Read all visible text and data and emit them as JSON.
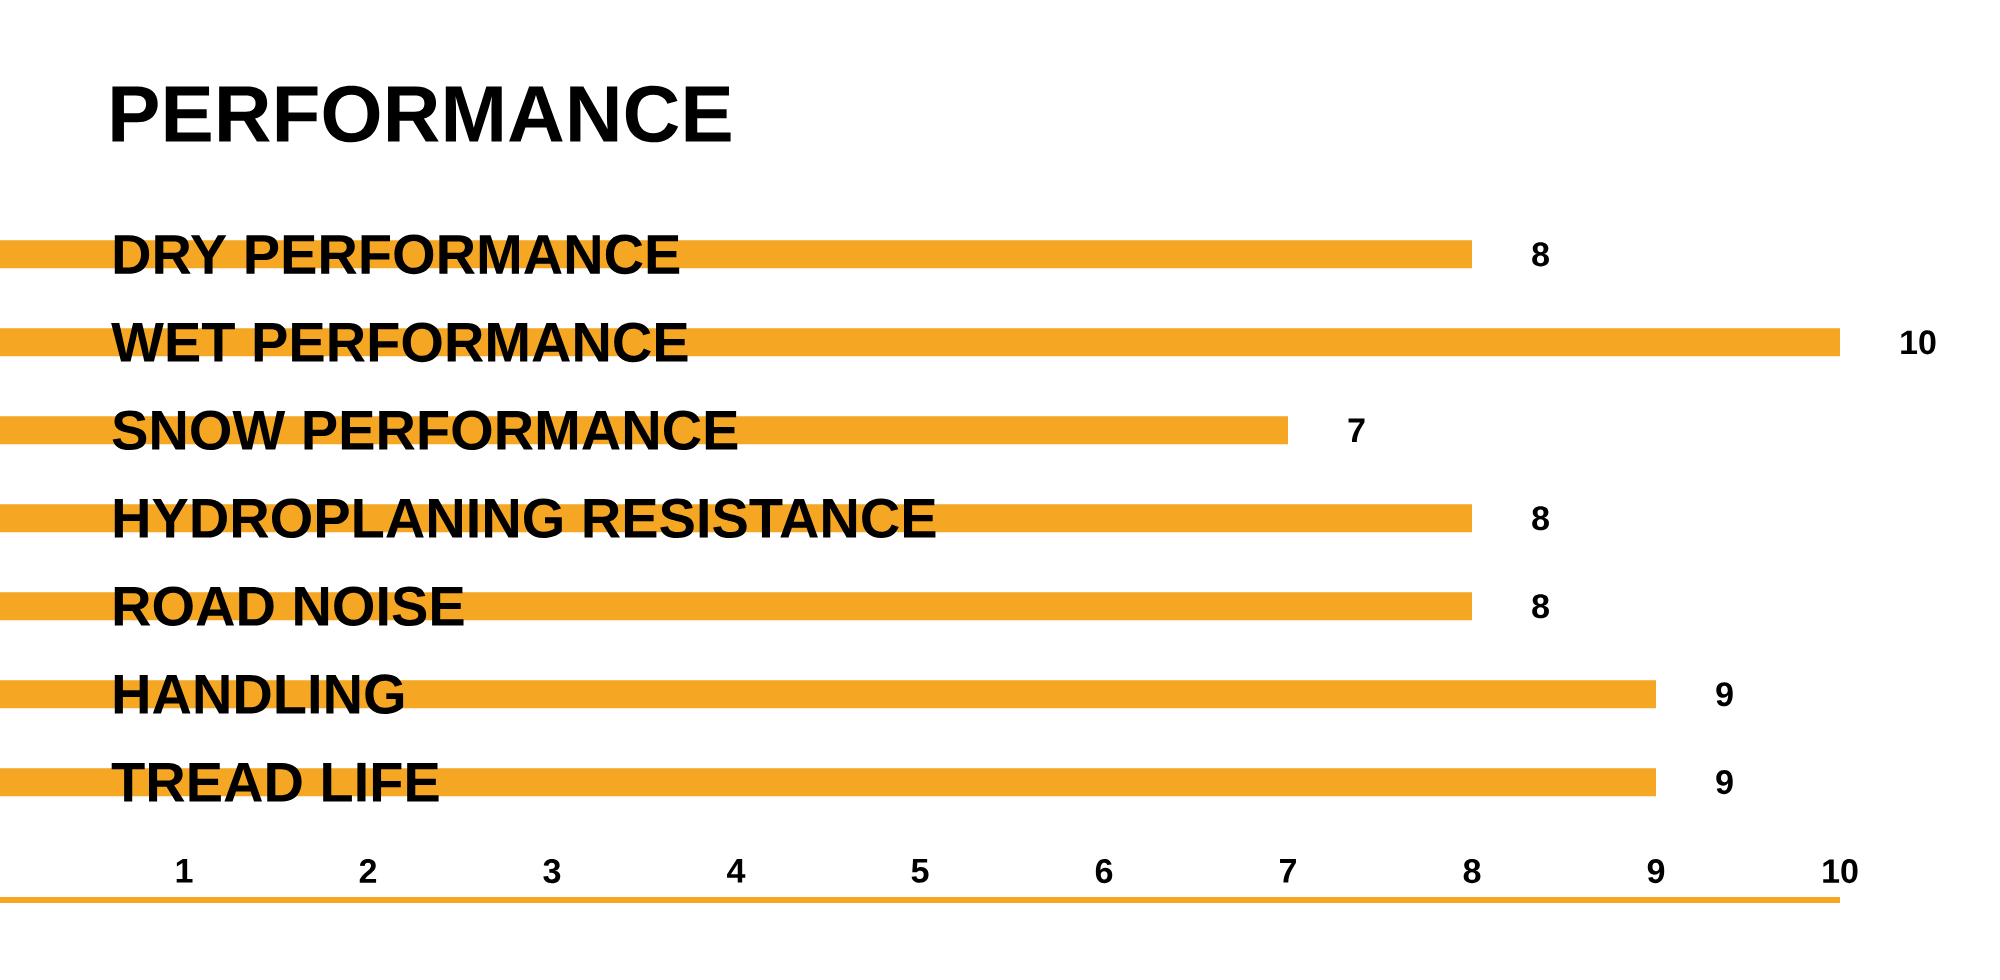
{
  "chart_data": {
    "type": "bar",
    "orientation": "horizontal",
    "title": "PERFORMANCE",
    "categories": [
      "DRY PERFORMANCE",
      "WET PERFORMANCE",
      "SNOW PERFORMANCE",
      "HYDROPLANING RESISTANCE",
      "ROAD NOISE",
      "HANDLING",
      "TREAD LIFE"
    ],
    "values": [
      8,
      10,
      7,
      8,
      8,
      9,
      9
    ],
    "color": "#f5a623",
    "xlim": [
      0,
      10
    ],
    "xticks": [
      1,
      2,
      3,
      4,
      5,
      6,
      7,
      8,
      9,
      10
    ],
    "data_labels": true
  }
}
